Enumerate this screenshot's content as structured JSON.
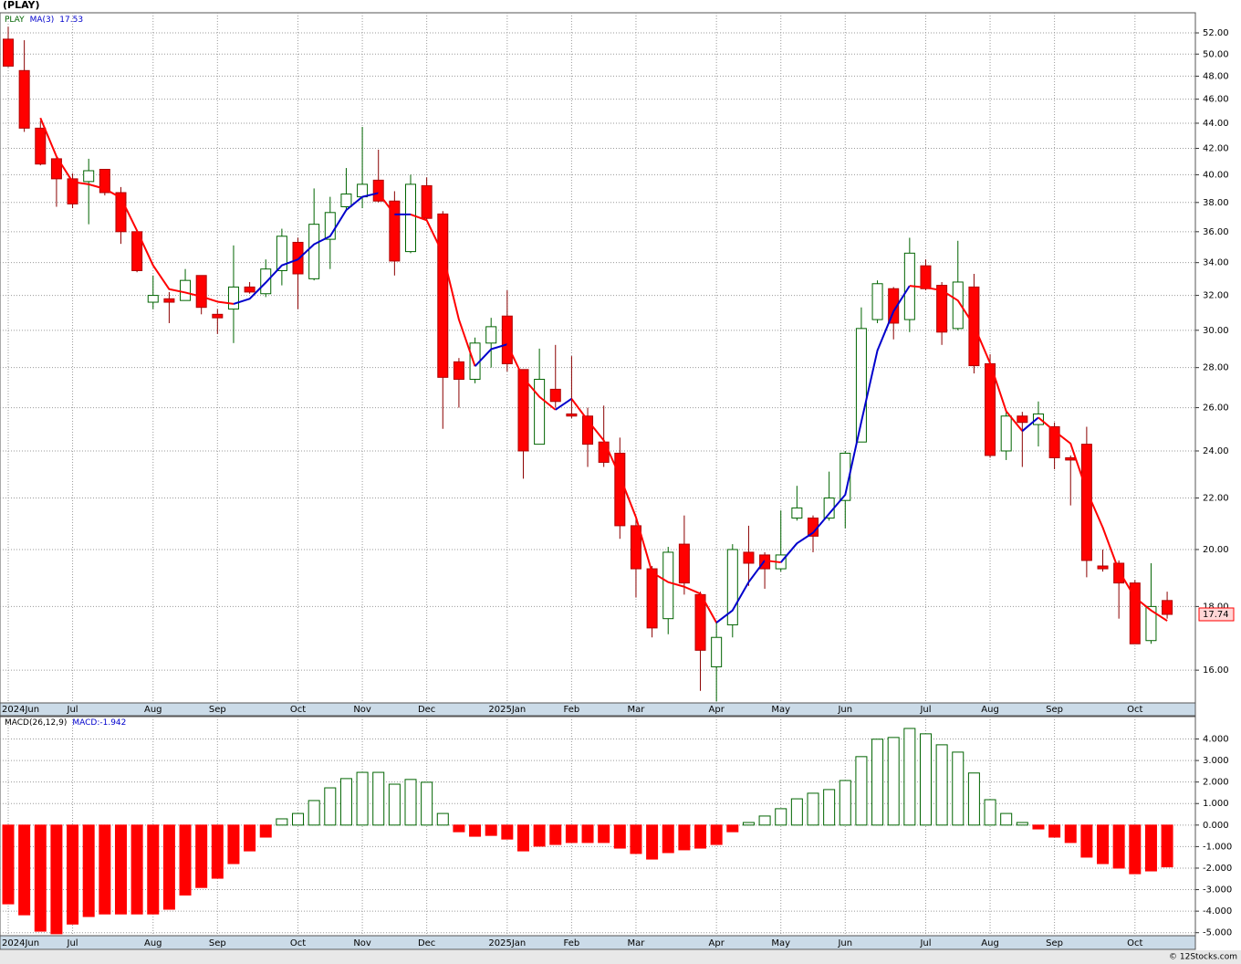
{
  "chart_data": [
    {
      "type": "candlestick",
      "title": "(PLAY)",
      "symbol": "PLAY",
      "categories": [
        "2024Jun",
        null,
        null,
        null,
        "Jul",
        null,
        null,
        null,
        null,
        "Aug",
        null,
        null,
        null,
        "Sep",
        null,
        null,
        null,
        null,
        "Oct",
        null,
        null,
        null,
        "Nov",
        null,
        null,
        null,
        "Dec",
        null,
        null,
        null,
        null,
        "2025Jan",
        null,
        null,
        null,
        "Feb",
        null,
        null,
        null,
        "Mar",
        null,
        null,
        null,
        null,
        "Apr",
        null,
        null,
        null,
        "May",
        null,
        null,
        null,
        "Jun",
        null,
        null,
        null,
        null,
        "Jul",
        null,
        null,
        null,
        "Aug",
        null,
        null,
        null,
        "Sep",
        null,
        null,
        null,
        null,
        "Oct",
        null,
        null
      ],
      "open": [
        51.4,
        48.5,
        43.6,
        41.2,
        39.7,
        39.5,
        40.4,
        38.7,
        36.0,
        31.6,
        31.8,
        31.7,
        33.2,
        30.9,
        31.2,
        32.5,
        32.1,
        33.5,
        35.3,
        33.0,
        35.5,
        37.7,
        38.4,
        39.6,
        38.1,
        34.7,
        39.2,
        37.2,
        28.3,
        27.4,
        29.3,
        30.8,
        27.9,
        24.3,
        26.9,
        25.7,
        25.6,
        24.4,
        23.9,
        20.9,
        19.3,
        17.6,
        20.2,
        18.4,
        16.1,
        17.4,
        19.9,
        19.8,
        19.3,
        21.2,
        21.2,
        21.2,
        21.9,
        24.4,
        30.6,
        32.4,
        30.6,
        33.8,
        32.6,
        30.1,
        32.5,
        28.2,
        24.0,
        25.6,
        25.2,
        25.1,
        23.7,
        24.3,
        19.4,
        19.5,
        18.8,
        16.9,
        18.2
      ],
      "high": [
        52.6,
        51.3,
        44.2,
        41.4,
        40.1,
        41.2,
        40.4,
        39.1,
        36.0,
        33.2,
        32.2,
        33.6,
        33.2,
        31.2,
        35.1,
        32.8,
        34.2,
        36.2,
        35.6,
        39.0,
        38.4,
        40.5,
        43.7,
        41.9,
        38.8,
        40.0,
        39.8,
        37.4,
        28.5,
        29.6,
        30.7,
        32.3,
        27.9,
        29.0,
        29.2,
        28.6,
        26.0,
        26.1,
        24.6,
        21.2,
        19.4,
        20.1,
        21.3,
        18.5,
        17.5,
        20.2,
        20.9,
        19.9,
        21.5,
        22.5,
        21.3,
        23.1,
        24.0,
        31.3,
        32.9,
        32.5,
        35.6,
        34.2,
        32.8,
        35.4,
        33.3,
        28.7,
        25.8,
        25.8,
        26.3,
        25.3,
        23.8,
        25.1,
        20.0,
        19.6,
        18.9,
        19.5,
        18.5
      ],
      "low": [
        48.8,
        43.3,
        40.7,
        37.7,
        37.6,
        36.5,
        38.5,
        35.2,
        33.4,
        31.2,
        30.4,
        31.7,
        30.9,
        29.8,
        29.3,
        32.1,
        31.9,
        32.6,
        31.2,
        32.9,
        33.6,
        37.5,
        37.6,
        38.0,
        33.2,
        34.6,
        36.7,
        25.0,
        26.0,
        27.2,
        28.0,
        27.8,
        22.8,
        24.3,
        26.0,
        25.5,
        23.3,
        23.3,
        20.4,
        18.3,
        17.0,
        17.1,
        18.4,
        15.4,
        15.1,
        17.0,
        18.7,
        18.6,
        19.2,
        21.1,
        19.9,
        21.1,
        20.8,
        24.4,
        30.4,
        29.5,
        29.9,
        32.3,
        29.2,
        30.0,
        27.7,
        23.7,
        23.6,
        23.3,
        24.2,
        23.2,
        21.7,
        19.0,
        19.2,
        17.6,
        16.8,
        16.8,
        17.6
      ],
      "close": [
        48.9,
        43.6,
        40.8,
        39.7,
        37.9,
        40.3,
        38.7,
        36.0,
        33.5,
        32.0,
        31.6,
        32.9,
        31.3,
        30.7,
        32.5,
        32.2,
        33.6,
        35.7,
        33.3,
        36.5,
        37.3,
        38.6,
        39.3,
        38.1,
        34.1,
        39.3,
        36.9,
        27.5,
        27.4,
        29.3,
        30.2,
        28.2,
        24.0,
        27.4,
        26.3,
        25.6,
        24.3,
        23.5,
        20.9,
        19.3,
        17.3,
        19.9,
        18.8,
        16.6,
        17.0,
        20.0,
        19.5,
        19.3,
        19.8,
        21.6,
        20.5,
        22.0,
        23.9,
        30.1,
        32.7,
        30.4,
        34.6,
        32.4,
        29.9,
        32.8,
        28.1,
        23.8,
        25.6,
        25.3,
        25.7,
        23.7,
        23.6,
        19.6,
        19.3,
        18.8,
        16.8,
        18.0,
        17.74
      ],
      "up_color": "#006400",
      "down_color": "#ff0000",
      "ma": {
        "name": "MA(3)",
        "rising_color": "#0000cc",
        "falling_color": "#ff0000",
        "values": [
          null,
          null,
          44.43,
          41.37,
          39.47,
          39.3,
          38.97,
          38.33,
          36.07,
          33.83,
          32.37,
          32.17,
          31.93,
          31.63,
          31.5,
          31.8,
          32.77,
          33.83,
          34.2,
          35.17,
          35.7,
          37.47,
          38.4,
          38.67,
          37.17,
          37.17,
          36.77,
          34.57,
          30.6,
          28.07,
          28.97,
          29.23,
          27.47,
          26.53,
          25.9,
          26.43,
          25.4,
          24.47,
          22.9,
          21.23,
          19.17,
          18.83,
          18.67,
          18.43,
          17.47,
          17.87,
          18.83,
          19.6,
          19.53,
          20.23,
          20.63,
          21.37,
          22.13,
          25.33,
          28.9,
          31.07,
          32.57,
          32.47,
          32.3,
          31.7,
          30.27,
          28.23,
          25.83,
          24.9,
          25.53,
          24.9,
          24.33,
          22.3,
          20.83,
          19.23,
          18.3,
          17.87,
          17.53
        ]
      },
      "log_scale": true,
      "grid": true,
      "ylim": [
        15.06,
        53.97
      ],
      "yticks": [
        {
          "value": 16,
          "label": "16.00"
        },
        {
          "value": 18,
          "label": "18.00"
        },
        {
          "value": 20,
          "label": "20.00"
        },
        {
          "value": 22,
          "label": "22.00"
        },
        {
          "value": 24,
          "label": "24.00"
        },
        {
          "value": 26,
          "label": "26.00"
        },
        {
          "value": 28,
          "label": "28.00"
        },
        {
          "value": 30,
          "label": "30.00"
        },
        {
          "value": 32,
          "label": "32.00"
        },
        {
          "value": 34,
          "label": "34.00"
        },
        {
          "value": 36,
          "label": "36.00"
        },
        {
          "value": 38,
          "label": "38.00"
        },
        {
          "value": 40,
          "label": "40.00"
        },
        {
          "value": 42,
          "label": "42.00"
        },
        {
          "value": 44,
          "label": "44.00"
        },
        {
          "value": 46,
          "label": "46.00"
        },
        {
          "value": 48,
          "label": "48.00"
        },
        {
          "value": 50,
          "label": "50.00"
        },
        {
          "value": 52,
          "label": "52.00"
        }
      ]
    },
    {
      "type": "bar",
      "name": "MACD(26,12,9)",
      "value_prefix": "MACD:",
      "categories": [
        "2024Jun",
        null,
        null,
        null,
        "Jul",
        null,
        null,
        null,
        null,
        "Aug",
        null,
        null,
        null,
        "Sep",
        null,
        null,
        null,
        null,
        "Oct",
        null,
        null,
        null,
        "Nov",
        null,
        null,
        null,
        "Dec",
        null,
        null,
        null,
        null,
        "2025Jan",
        null,
        null,
        null,
        "Feb",
        null,
        null,
        null,
        "Mar",
        null,
        null,
        null,
        null,
        "Apr",
        null,
        null,
        null,
        "May",
        null,
        null,
        null,
        "Jun",
        null,
        null,
        null,
        null,
        "Jul",
        null,
        null,
        null,
        "Aug",
        null,
        null,
        null,
        "Sep",
        null,
        null,
        null,
        null,
        "Oct",
        null,
        null
      ],
      "values": [
        -3.66,
        -4.17,
        -4.93,
        -5.05,
        -4.6,
        -4.25,
        -4.13,
        -4.13,
        -4.13,
        -4.13,
        -3.91,
        -3.25,
        -2.9,
        -2.47,
        -1.79,
        -1.2,
        -0.56,
        0.29,
        0.54,
        1.14,
        1.73,
        2.16,
        2.45,
        2.45,
        1.9,
        2.12,
        1.99,
        0.54,
        -0.31,
        -0.52,
        -0.48,
        -0.65,
        -1.2,
        -0.98,
        -0.9,
        -0.81,
        -0.81,
        -0.81,
        -1.07,
        -1.32,
        -1.58,
        -1.28,
        -1.15,
        -1.07,
        -0.9,
        -0.31,
        0.12,
        0.42,
        0.76,
        1.22,
        1.48,
        1.65,
        2.07,
        3.18,
        3.99,
        4.07,
        4.49,
        4.24,
        3.73,
        3.39,
        2.42,
        1.18,
        0.54,
        0.12,
        -0.18,
        -0.56,
        -0.81,
        -1.49,
        -1.79,
        -2.0,
        -2.26,
        -2.13,
        -1.942
      ],
      "positive_color": "#006400",
      "negative_color": "#ff0000",
      "grid": true,
      "ylim": [
        -5.14,
        5.04
      ],
      "yticks": [
        {
          "value": -5,
          "label": "-5.000"
        },
        {
          "value": -4,
          "label": "-4.000"
        },
        {
          "value": -3,
          "label": "-3.000"
        },
        {
          "value": -2,
          "label": "-2.000"
        },
        {
          "value": -1,
          "label": "-1.000"
        },
        {
          "value": 0,
          "label": "0.000"
        },
        {
          "value": 1,
          "label": "1.000"
        },
        {
          "value": 2,
          "label": "2.000"
        },
        {
          "value": 3,
          "label": "3.000"
        },
        {
          "value": 4,
          "label": "4.000"
        }
      ]
    }
  ],
  "footer": "© 12Stocks.com"
}
